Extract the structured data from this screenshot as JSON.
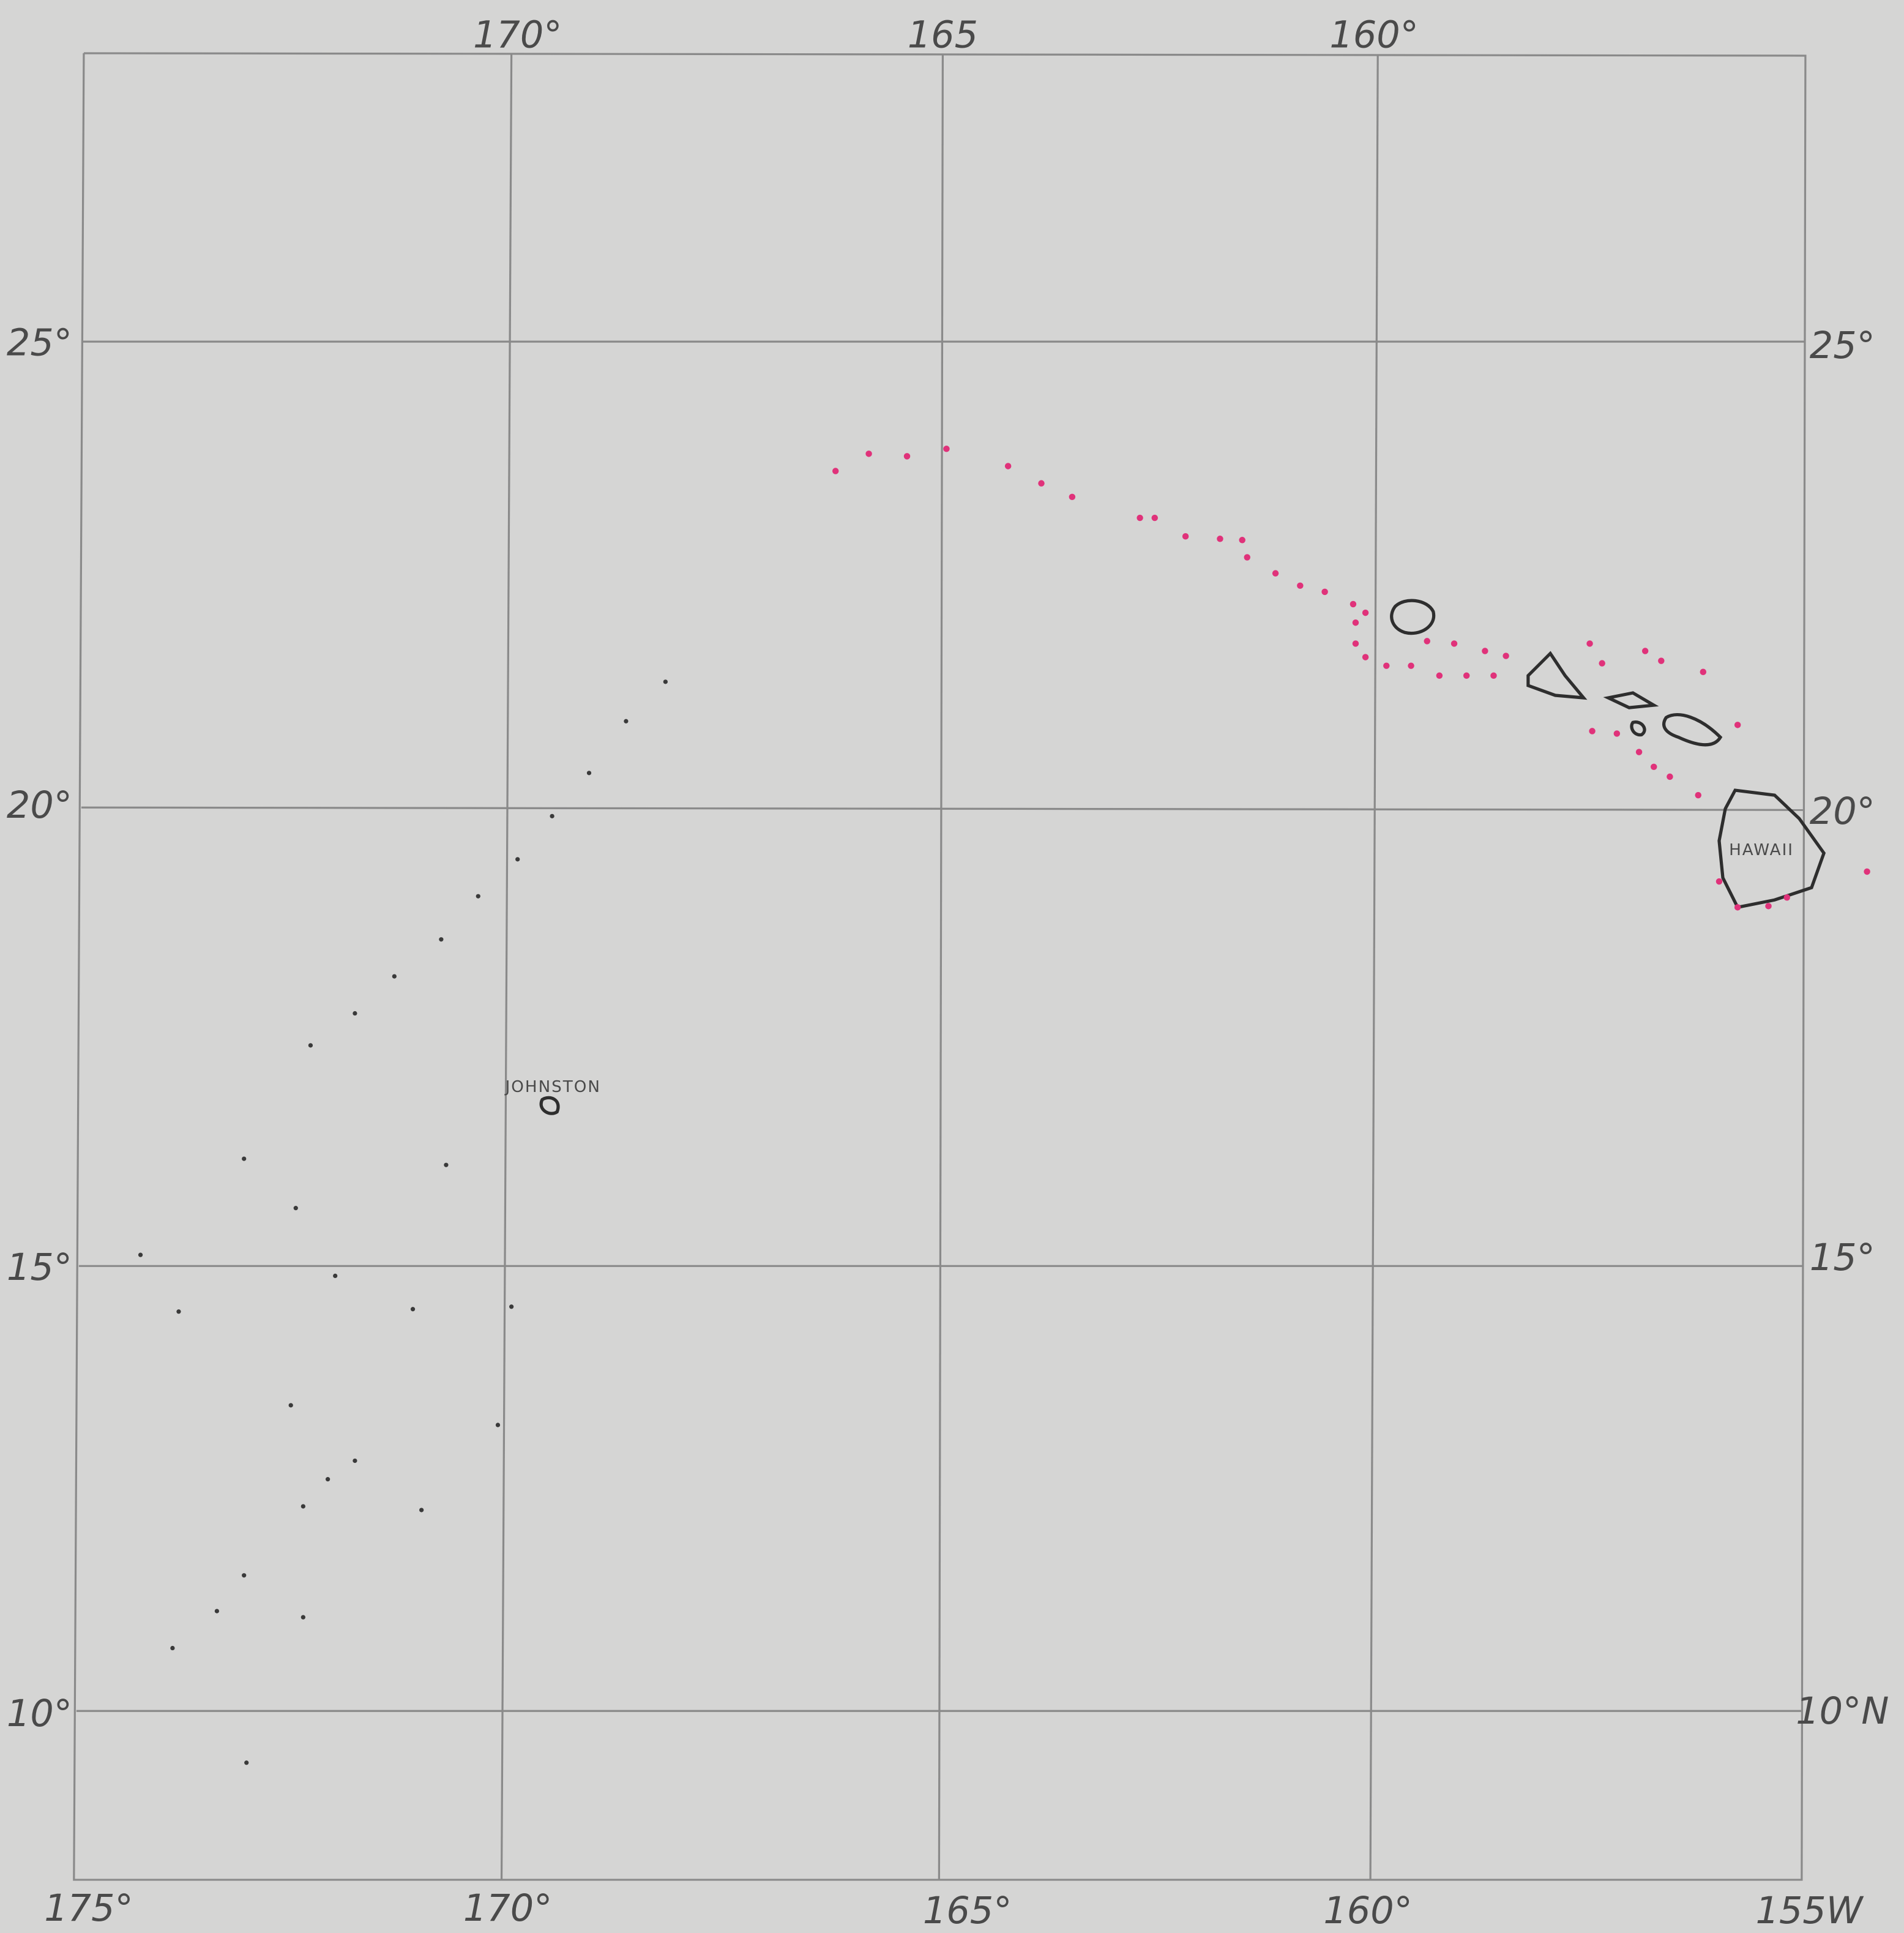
{
  "map": {
    "top_labels": [
      "170°",
      "165",
      "160°"
    ],
    "left_labels": [
      "25°",
      "20°",
      "15°",
      "10°"
    ],
    "right_labels": [
      "25°",
      "20°",
      "15°",
      "10°N"
    ],
    "bottom_labels": [
      "175°",
      "170°",
      "165°",
      "160°",
      "155W"
    ],
    "places": [
      "JOHNSTON",
      "HAWAII"
    ]
  }
}
